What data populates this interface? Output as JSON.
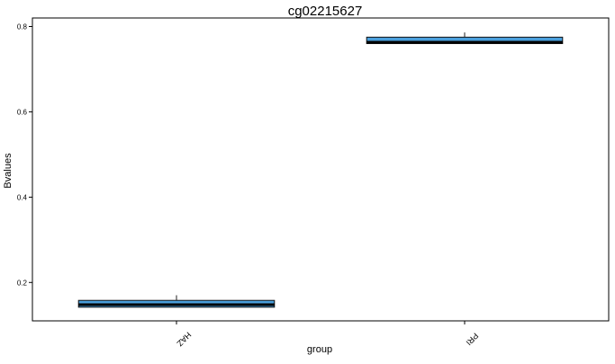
{
  "chart_data": {
    "type": "box",
    "title": "cg02215627",
    "xlabel": "group",
    "ylabel": "Bvalues",
    "categories": [
      "HAZ",
      "PRI"
    ],
    "boxes": [
      {
        "category": "HAZ",
        "whisker_low": 0.142,
        "q1": 0.142,
        "median": 0.148,
        "q3": 0.158,
        "whisker_high": 0.17
      },
      {
        "category": "PRI",
        "whisker_low": 0.76,
        "q1": 0.76,
        "median": 0.763,
        "q3": 0.775,
        "whisker_high": 0.786
      }
    ],
    "yticks": [
      0.2,
      0.4,
      0.6,
      0.8
    ],
    "ytick_labels": [
      "0.2",
      "0.4",
      "0.6",
      "0.8"
    ],
    "ylim": [
      0.11,
      0.82
    ],
    "grid": false,
    "legend": "none",
    "colors": {
      "box_fill": "#4a9fdc",
      "box_stroke": "#111111",
      "axis": "#000000"
    }
  }
}
